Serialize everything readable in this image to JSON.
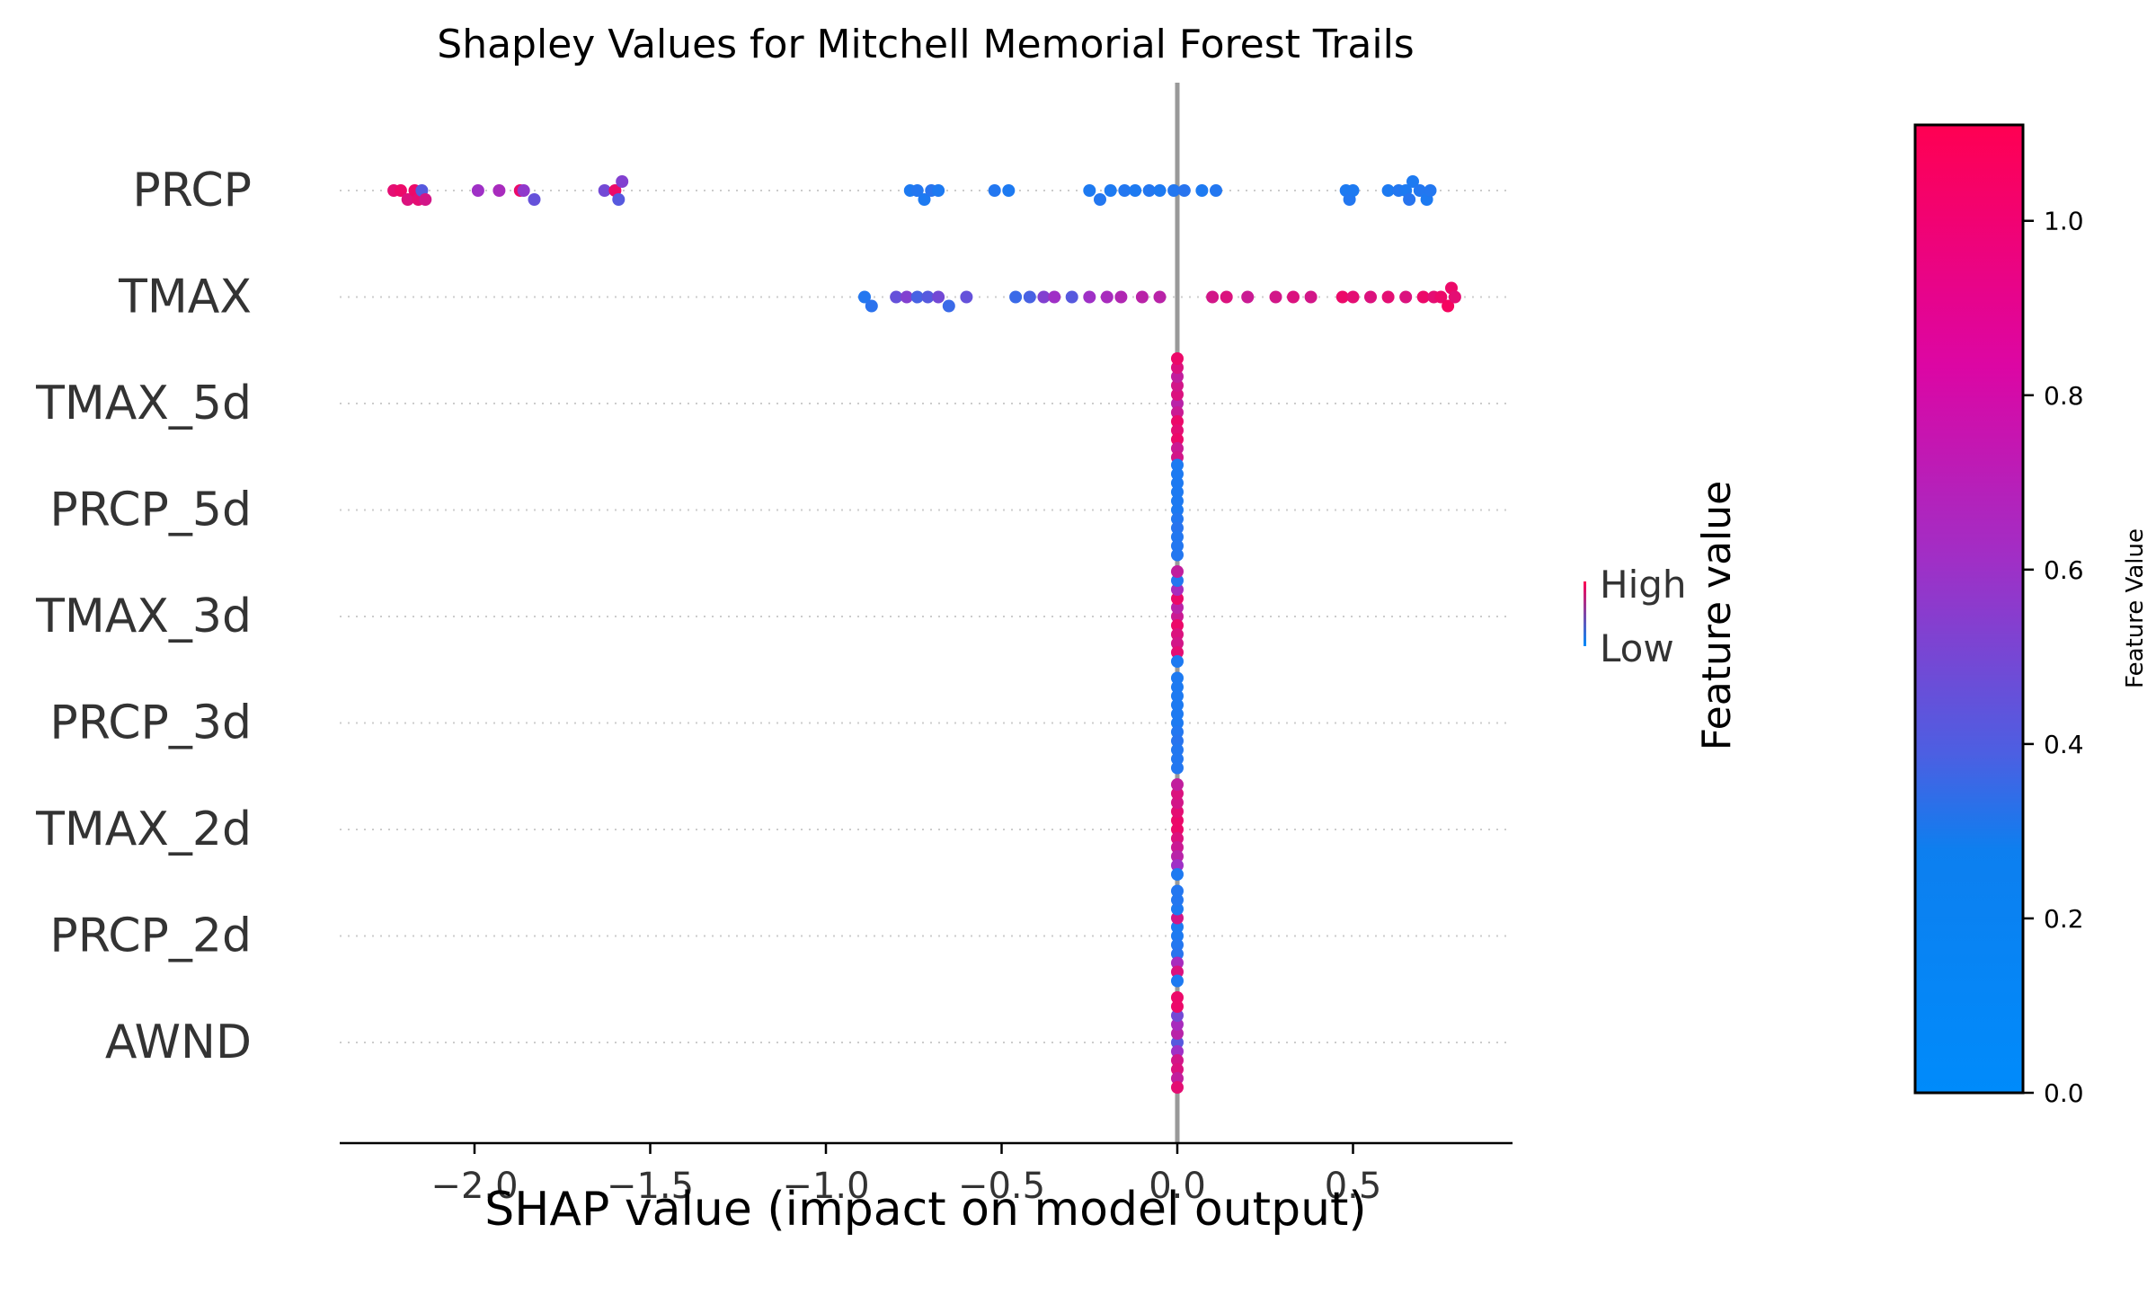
{
  "chart_data": [
    {
      "type": "scatter",
      "subtype": "shap-beeswarm",
      "title": "Shapley Values for Mitchell Memorial Forest Trails",
      "xlabel": "SHAP value (impact on model output)",
      "ylabel": "",
      "xlim": [
        -2.38,
        0.95
      ],
      "xticks": [
        -2.0,
        -1.5,
        -1.0,
        -0.5,
        0.0,
        0.5
      ],
      "xtick_labels": [
        "−2.0",
        "−1.5",
        "−1.0",
        "−0.5",
        "0.0",
        "0.5"
      ],
      "grid": "dotted horizontal row lines",
      "zero_line": 0.0,
      "legend": {
        "title": "Feature value",
        "high_label": "High",
        "low_label": "Low",
        "placement": "right"
      },
      "features": [
        {
          "name": "PRCP",
          "points": [
            [
              -2.23,
              0.95
            ],
            [
              -2.21,
              1.0
            ],
            [
              -2.19,
              0.9
            ],
            [
              -2.17,
              1.0
            ],
            [
              -2.16,
              0.95
            ],
            [
              -2.15,
              0.3
            ],
            [
              -2.14,
              0.85
            ],
            [
              -1.99,
              0.55
            ],
            [
              -1.93,
              0.6
            ],
            [
              -1.87,
              1.0
            ],
            [
              -1.86,
              0.5
            ],
            [
              -1.83,
              0.35
            ],
            [
              -1.63,
              0.4
            ],
            [
              -1.6,
              1.0
            ],
            [
              -1.59,
              0.3
            ],
            [
              -1.58,
              0.45
            ],
            [
              -0.76,
              0.1
            ],
            [
              -0.74,
              0.12
            ],
            [
              -0.72,
              0.1
            ],
            [
              -0.7,
              0.14
            ],
            [
              -0.68,
              0.1
            ],
            [
              -0.52,
              0.12
            ],
            [
              -0.48,
              0.1
            ],
            [
              -0.25,
              0.1
            ],
            [
              -0.22,
              0.12
            ],
            [
              -0.19,
              0.1
            ],
            [
              -0.15,
              0.12
            ],
            [
              -0.12,
              0.1
            ],
            [
              -0.08,
              0.12
            ],
            [
              -0.05,
              0.1
            ],
            [
              -0.01,
              0.12
            ],
            [
              0.02,
              0.14
            ],
            [
              0.07,
              0.1
            ],
            [
              0.11,
              0.12
            ],
            [
              0.48,
              0.1
            ],
            [
              0.49,
              0.12
            ],
            [
              0.5,
              0.1
            ],
            [
              0.6,
              0.1
            ],
            [
              0.63,
              0.12
            ],
            [
              0.65,
              0.1
            ],
            [
              0.66,
              0.14
            ],
            [
              0.67,
              0.1
            ],
            [
              0.69,
              0.12
            ],
            [
              0.71,
              0.1
            ],
            [
              0.72,
              0.12
            ]
          ]
        },
        {
          "name": "TMAX",
          "points": [
            [
              -0.89,
              0.12
            ],
            [
              -0.87,
              0.15
            ],
            [
              -0.8,
              0.35
            ],
            [
              -0.77,
              0.45
            ],
            [
              -0.74,
              0.25
            ],
            [
              -0.71,
              0.3
            ],
            [
              -0.68,
              0.4
            ],
            [
              -0.65,
              0.2
            ],
            [
              -0.6,
              0.35
            ],
            [
              -0.46,
              0.2
            ],
            [
              -0.42,
              0.25
            ],
            [
              -0.38,
              0.45
            ],
            [
              -0.35,
              0.55
            ],
            [
              -0.3,
              0.3
            ],
            [
              -0.25,
              0.55
            ],
            [
              -0.2,
              0.6
            ],
            [
              -0.16,
              0.65
            ],
            [
              -0.1,
              0.7
            ],
            [
              -0.05,
              0.7
            ],
            [
              0.1,
              0.85
            ],
            [
              0.14,
              0.9
            ],
            [
              0.2,
              0.8
            ],
            [
              0.28,
              0.85
            ],
            [
              0.33,
              0.9
            ],
            [
              0.38,
              0.85
            ],
            [
              0.47,
              1.0
            ],
            [
              0.5,
              0.95
            ],
            [
              0.55,
              0.9
            ],
            [
              0.6,
              0.95
            ],
            [
              0.65,
              0.9
            ],
            [
              0.7,
              1.0
            ],
            [
              0.73,
              0.95
            ],
            [
              0.75,
              1.0
            ],
            [
              0.77,
              1.05
            ],
            [
              0.78,
              1.0
            ],
            [
              0.79,
              0.95
            ]
          ]
        },
        {
          "name": "TMAX_5d",
          "points": [
            [
              0.0,
              0.7
            ],
            [
              0.0,
              0.8
            ],
            [
              0.0,
              0.9
            ],
            [
              0.0,
              1.0
            ],
            [
              0.0,
              0.85
            ],
            [
              0.0,
              0.95
            ],
            [
              0.0,
              0.75
            ],
            [
              0.0,
              1.0
            ],
            [
              0.0,
              0.9
            ],
            [
              0.0,
              0.8
            ],
            [
              0.0,
              1.0
            ],
            [
              0.0,
              0.85
            ]
          ]
        },
        {
          "name": "PRCP_5d",
          "points": [
            [
              0.0,
              0.1
            ],
            [
              0.0,
              0.12
            ],
            [
              0.0,
              0.1
            ],
            [
              0.0,
              0.14
            ],
            [
              0.0,
              0.1
            ],
            [
              0.0,
              0.12
            ],
            [
              0.0,
              0.1
            ],
            [
              0.0,
              0.12
            ],
            [
              0.0,
              0.1
            ],
            [
              0.0,
              0.12
            ],
            [
              0.0,
              0.1
            ]
          ]
        },
        {
          "name": "TMAX_3d",
          "points": [
            [
              0.0,
              0.8
            ],
            [
              0.0,
              1.0
            ],
            [
              0.0,
              0.7
            ],
            [
              0.0,
              0.9
            ],
            [
              0.0,
              1.0
            ],
            [
              0.0,
              0.85
            ],
            [
              0.0,
              0.6
            ],
            [
              0.0,
              0.95
            ],
            [
              0.0,
              0.12
            ],
            [
              0.0,
              0.1
            ],
            [
              0.0,
              0.75
            ]
          ]
        },
        {
          "name": "PRCP_3d",
          "points": [
            [
              0.0,
              0.1
            ],
            [
              0.0,
              0.12
            ],
            [
              0.0,
              0.1
            ],
            [
              0.0,
              0.14
            ],
            [
              0.0,
              0.1
            ],
            [
              0.0,
              0.12
            ],
            [
              0.0,
              0.1
            ],
            [
              0.0,
              0.12
            ],
            [
              0.0,
              0.1
            ],
            [
              0.0,
              0.12
            ],
            [
              0.0,
              0.1
            ]
          ]
        },
        {
          "name": "TMAX_2d",
          "points": [
            [
              0.0,
              1.0
            ],
            [
              0.0,
              0.9
            ],
            [
              0.0,
              1.0
            ],
            [
              0.0,
              0.8
            ],
            [
              0.0,
              0.95
            ],
            [
              0.0,
              0.7
            ],
            [
              0.0,
              0.85
            ],
            [
              0.0,
              0.55
            ],
            [
              0.0,
              0.9
            ],
            [
              0.0,
              0.1
            ],
            [
              0.0,
              0.75
            ]
          ]
        },
        {
          "name": "PRCP_2d",
          "points": [
            [
              0.0,
              0.1
            ],
            [
              0.0,
              0.12
            ],
            [
              0.0,
              0.1
            ],
            [
              0.0,
              0.14
            ],
            [
              0.0,
              0.85
            ],
            [
              0.0,
              0.6
            ],
            [
              0.0,
              0.1
            ],
            [
              0.0,
              0.9
            ],
            [
              0.0,
              0.12
            ],
            [
              0.0,
              0.1
            ],
            [
              0.0,
              0.12
            ]
          ]
        },
        {
          "name": "AWND",
          "points": [
            [
              0.0,
              0.3
            ],
            [
              0.0,
              0.55
            ],
            [
              0.0,
              0.7
            ],
            [
              0.0,
              0.85
            ],
            [
              0.0,
              0.6
            ],
            [
              0.0,
              0.9
            ],
            [
              0.0,
              0.4
            ],
            [
              0.0,
              0.75
            ],
            [
              0.0,
              1.0
            ],
            [
              0.0,
              0.95
            ],
            [
              0.0,
              1.0
            ]
          ]
        }
      ]
    },
    {
      "type": "colorbar",
      "ylabel": "Feature Value",
      "range": [
        0.0,
        1.11
      ],
      "ticks": [
        0.0,
        0.2,
        0.4,
        0.6,
        0.8,
        1.0
      ],
      "tick_labels": [
        "0.0",
        "0.2",
        "0.4",
        "0.6",
        "0.8",
        "1.0"
      ],
      "colors": [
        "#008bfb",
        "#ff0052"
      ]
    }
  ]
}
